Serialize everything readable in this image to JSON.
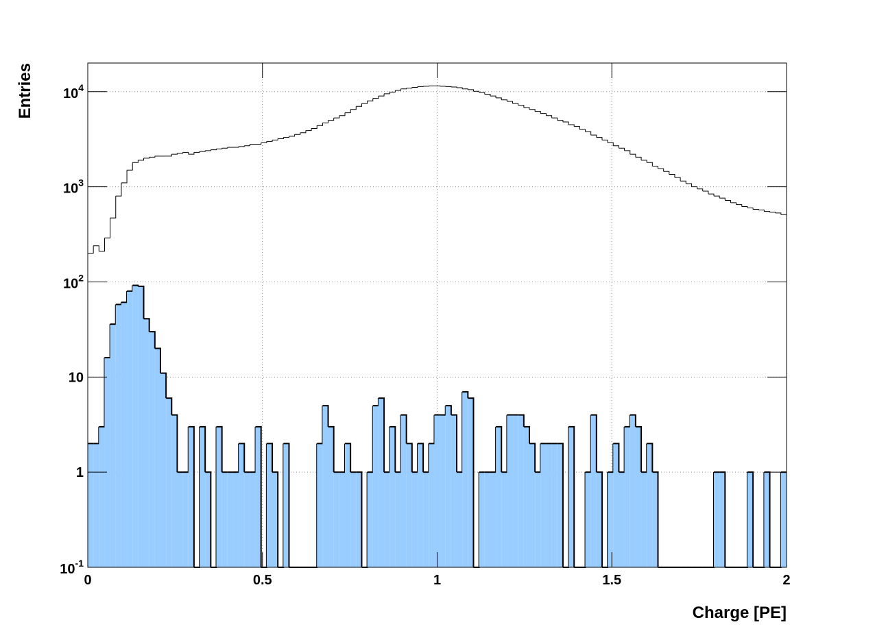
{
  "chart_data": {
    "type": "histogram",
    "x_label": "Charge [PE]",
    "y_label": "Entries",
    "log_y": true,
    "grid": true,
    "bins": [
      0,
      0.016,
      0.032,
      0.048,
      0.064,
      0.08,
      0.096,
      0.112,
      0.128,
      0.144,
      0.16,
      0.176,
      0.192,
      0.208,
      0.224,
      0.24,
      0.256,
      0.272,
      0.288,
      0.304,
      0.32,
      0.336,
      0.352,
      0.368,
      0.384,
      0.4,
      0.416,
      0.432,
      0.448,
      0.464,
      0.48,
      0.496,
      0.512,
      0.528,
      0.544,
      0.56,
      0.576,
      0.592,
      0.608,
      0.624,
      0.64,
      0.656,
      0.672,
      0.688,
      0.704,
      0.72,
      0.736,
      0.752,
      0.768,
      0.784,
      0.8,
      0.816,
      0.832,
      0.848,
      0.864,
      0.88,
      0.896,
      0.912,
      0.928,
      0.944,
      0.96,
      0.976,
      0.992,
      1.008,
      1.024,
      1.04,
      1.056,
      1.072,
      1.088,
      1.104,
      1.12,
      1.136,
      1.152,
      1.168,
      1.184,
      1.2,
      1.216,
      1.232,
      1.248,
      1.264,
      1.28,
      1.296,
      1.312,
      1.328,
      1.344,
      1.36,
      1.376,
      1.392,
      1.408,
      1.424,
      1.44,
      1.456,
      1.472,
      1.488,
      1.504,
      1.52,
      1.536,
      1.552,
      1.568,
      1.584,
      1.6,
      1.616,
      1.632,
      1.648,
      1.664,
      1.68,
      1.696,
      1.712,
      1.728,
      1.744,
      1.76,
      1.776,
      1.792,
      1.808,
      1.824,
      1.84,
      1.856,
      1.872,
      1.888,
      1.904,
      1.92,
      1.936,
      1.952,
      1.968,
      1.984,
      2.0
    ],
    "series": [
      {
        "color": "#000000",
        "fill": "none",
        "line_width": 1,
        "values": [
          200,
          240,
          210,
          290,
          470,
          800,
          1100,
          1500,
          1800,
          1900,
          2000,
          2050,
          2100,
          2100,
          2100,
          2200,
          2250,
          2300,
          2200,
          2300,
          2350,
          2400,
          2450,
          2500,
          2550,
          2600,
          2600,
          2650,
          2700,
          2800,
          2800,
          2900,
          3000,
          3100,
          3200,
          3300,
          3400,
          3550,
          3700,
          3900,
          4100,
          4400,
          4700,
          5000,
          5300,
          5600,
          6000,
          6500,
          7000,
          7500,
          8000,
          8500,
          9000,
          9500,
          9900,
          10300,
          10700,
          10900,
          11100,
          11300,
          11400,
          11500,
          11500,
          11400,
          11300,
          11200,
          11000,
          10700,
          10500,
          10100,
          9800,
          9400,
          9000,
          8600,
          8200,
          7900,
          7500,
          7200,
          6800,
          6500,
          6200,
          5900,
          5600,
          5300,
          5000,
          4800,
          4500,
          4300,
          4000,
          3800,
          3500,
          3300,
          3100,
          2900,
          2700,
          2550,
          2400,
          2200,
          2050,
          1900,
          1800,
          1650,
          1550,
          1450,
          1350,
          1250,
          1150,
          1080,
          1000,
          950,
          900,
          840,
          800,
          760,
          720,
          680,
          650,
          620,
          600,
          580,
          570,
          550,
          540,
          530,
          510
        ]
      },
      {
        "color": "#000000",
        "fill": "#99ccff",
        "line_width": 2,
        "values": [
          2,
          2,
          3,
          16,
          36,
          58,
          61,
          80,
          92,
          90,
          41,
          30,
          20,
          11,
          6,
          4,
          1,
          1,
          3,
          0,
          3,
          1,
          0,
          3,
          1,
          1,
          1,
          2,
          1,
          1,
          3,
          0,
          2,
          1,
          0,
          2,
          0,
          0,
          0,
          0,
          0,
          2,
          5,
          3,
          1,
          1,
          2,
          1,
          1,
          0,
          1,
          5,
          6,
          1,
          3,
          1,
          4,
          2,
          1,
          2,
          1,
          2,
          4,
          4,
          5,
          4,
          1,
          7,
          6,
          0,
          1,
          1,
          1,
          3,
          1,
          4,
          4,
          4,
          3,
          2,
          1,
          2,
          2,
          2,
          2,
          0,
          3,
          0,
          0,
          1,
          4,
          1,
          0,
          1,
          2,
          1,
          3,
          4,
          3,
          1,
          2,
          1,
          0,
          0,
          0,
          0,
          0,
          0,
          0,
          0,
          0,
          0,
          1,
          1,
          0,
          0,
          0,
          0,
          1,
          0,
          0,
          1,
          0,
          0,
          1
        ]
      }
    ],
    "xlim": [
      0,
      2
    ],
    "xticks": [
      0,
      0.5,
      1,
      1.5,
      2
    ],
    "ylim": [
      0.1,
      20000
    ],
    "yticks": [
      {
        "value": 0.1,
        "label": "10",
        "exponent": "-1"
      },
      1,
      10,
      {
        "value": 100,
        "label": "10",
        "exponent": "2"
      },
      {
        "value": 1000,
        "label": "10",
        "exponent": "3"
      },
      {
        "value": 10000,
        "label": "10",
        "exponent": "4"
      }
    ]
  }
}
